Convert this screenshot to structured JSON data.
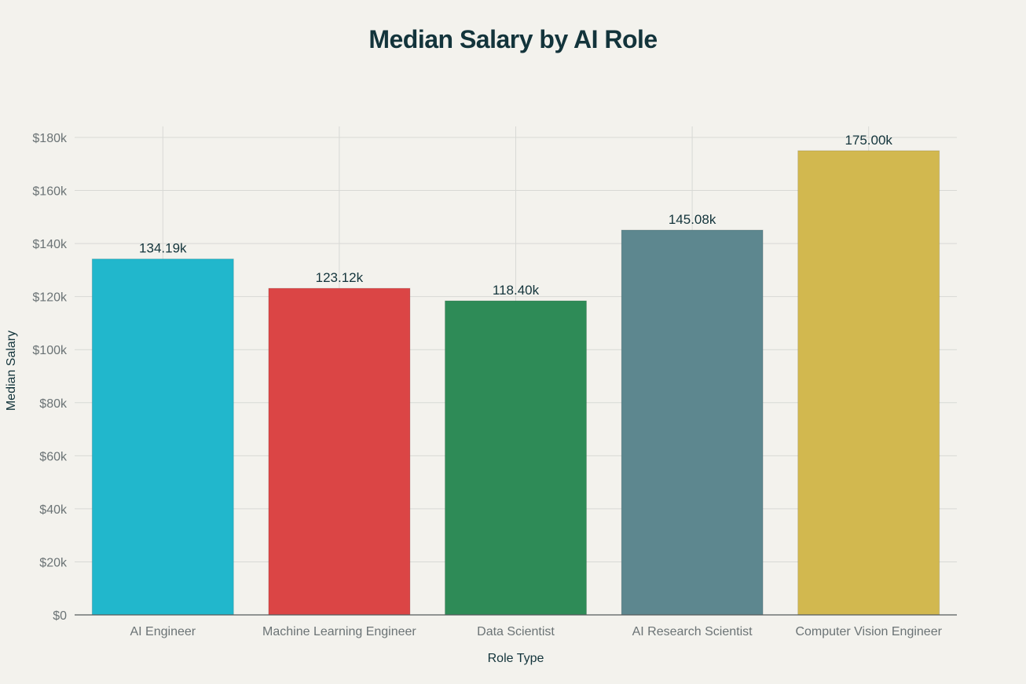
{
  "chart_data": {
    "type": "bar",
    "title": "Median Salary by AI Role",
    "xlabel": "Role Type",
    "ylabel": "Median Salary",
    "categories": [
      "AI Engineer",
      "Machine Learning Engineer",
      "Data Scientist",
      "AI Research Scientist",
      "Computer Vision Engineer"
    ],
    "values": [
      134190,
      123120,
      118400,
      145080,
      175000
    ],
    "data_labels": [
      "134.19k",
      "123.12k",
      "118.40k",
      "145.08k",
      "175.00k"
    ],
    "colors": [
      "#21b7cc",
      "#db4545",
      "#2e8b57",
      "#5d878f",
      "#d2b84f"
    ],
    "ylim": [
      0,
      184000
    ],
    "yticks": [
      0,
      20000,
      40000,
      60000,
      80000,
      100000,
      120000,
      140000,
      160000,
      180000
    ],
    "ytick_labels": [
      "$0",
      "$20k",
      "$40k",
      "$60k",
      "$80k",
      "$100k",
      "$120k",
      "$140k",
      "$160k",
      "$180k"
    ],
    "grid": true,
    "legend": "none"
  }
}
